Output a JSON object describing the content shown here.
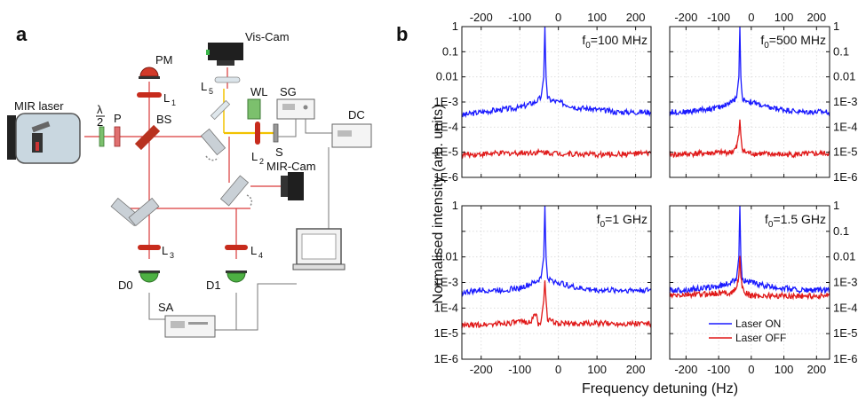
{
  "panel_a": {
    "label": "a",
    "components": {
      "mir_laser": "MIR laser",
      "half_wave_top": "λ",
      "half_wave_bottom": "2",
      "polarizer": "P",
      "beam_splitter": "BS",
      "power_meter": "PM",
      "lens1": "L",
      "lens1_sub": "1",
      "lens2": "L",
      "lens2_sub": "2",
      "lens3": "L",
      "lens3_sub": "3",
      "lens4": "L",
      "lens4_sub": "4",
      "lens5": "L",
      "lens5_sub": "5",
      "vis_cam": "Vis-Cam",
      "white_light": "WL",
      "signal_generator": "SG",
      "sample": "S",
      "dc_source": "DC",
      "mir_cam": "MIR-Cam",
      "detector0": "D0",
      "detector1": "D1",
      "spectrum_analyzer": "SA"
    }
  },
  "panel_b": {
    "label": "b",
    "ylabel": "Normalised intensity (arb. units)",
    "xlabel": "Frequency detuning (Hz)"
  },
  "colors": {
    "laser_on": "#1a1aff",
    "laser_off": "#e01818",
    "beam": "#d93a3a",
    "yellow_beam": "#f2c200"
  },
  "chart_data": [
    {
      "type": "line",
      "panel": "top-left",
      "annotation": "f0=100 MHz",
      "annotation_main": "f",
      "annotation_sub": "0",
      "annotation_rest": "=100 MHz",
      "xlim": [
        -250,
        240
      ],
      "ylim_log10": [
        -6,
        0
      ],
      "x_ticks_top": [
        "-200",
        "-100",
        "0",
        "100",
        "200"
      ],
      "x_tick_values": [
        -200,
        -100,
        0,
        100,
        200
      ],
      "y_ticks_left": [
        "1",
        "0.1",
        "0.01",
        "1E-3",
        "1E-4",
        "1E-5",
        "1E-6"
      ],
      "y_ticks_right": [],
      "series": [
        {
          "name": "Laser ON",
          "color": "#1a1aff",
          "baseline": 0.0004,
          "peak": 1.0,
          "x": [
            -250,
            -200,
            -150,
            -100,
            -60,
            -45,
            -38,
            -35,
            -32,
            -28,
            -20,
            0,
            50,
            100,
            150,
            200,
            240
          ],
          "y": [
            0.0003,
            0.0004,
            0.0005,
            0.0006,
            0.001,
            0.0015,
            0.01,
            1.0,
            0.01,
            0.0015,
            0.0012,
            0.001,
            0.0006,
            0.0005,
            0.0004,
            0.0004,
            0.0004
          ]
        },
        {
          "name": "Laser OFF",
          "color": "#e01818",
          "x": [
            -250,
            -150,
            -50,
            -35,
            0,
            100,
            240
          ],
          "y": [
            8e-06,
            9e-06,
            1e-05,
            1e-05,
            9e-06,
            8e-06,
            9e-06
          ]
        }
      ]
    },
    {
      "type": "line",
      "panel": "top-right",
      "annotation_main": "f",
      "annotation_sub": "0",
      "annotation_rest": "=500 MHz",
      "xlim": [
        -250,
        240
      ],
      "ylim_log10": [
        -6,
        0
      ],
      "x_ticks_top": [
        "-200",
        "-100",
        "0",
        "100",
        "200"
      ],
      "x_tick_values": [
        -200,
        -100,
        0,
        100,
        200
      ],
      "y_ticks_left": [],
      "y_ticks_right": [
        "1",
        "0.1",
        "0.01",
        "1E-3",
        "1E-4",
        "1E-5",
        "1E-6"
      ],
      "series": [
        {
          "name": "Laser ON",
          "color": "#1a1aff",
          "x": [
            -250,
            -200,
            -150,
            -100,
            -60,
            -45,
            -38,
            -35,
            -32,
            -28,
            -20,
            0,
            50,
            100,
            150,
            200,
            240
          ],
          "y": [
            0.0004,
            0.0004,
            0.0005,
            0.0006,
            0.001,
            0.0015,
            0.01,
            1.0,
            0.01,
            0.0015,
            0.0012,
            0.001,
            0.0006,
            0.0005,
            0.0004,
            0.0004,
            0.0004
          ]
        },
        {
          "name": "Laser OFF",
          "color": "#e01818",
          "x": [
            -250,
            -150,
            -60,
            -45,
            -38,
            -35,
            -32,
            -28,
            -20,
            0,
            100,
            240
          ],
          "y": [
            8e-06,
            9e-06,
            1e-05,
            1.5e-05,
            5e-05,
            0.0002,
            5e-05,
            1.5e-05,
            1e-05,
            9e-06,
            8e-06,
            9e-06
          ]
        }
      ]
    },
    {
      "type": "line",
      "panel": "bottom-left",
      "annotation_main": "f",
      "annotation_sub": "0",
      "annotation_rest": "=1 GHz",
      "xlim": [
        -250,
        240
      ],
      "ylim_log10": [
        -6,
        0
      ],
      "x_ticks_bottom": [
        "-200",
        "-100",
        "0",
        "100",
        "200"
      ],
      "x_tick_values": [
        -200,
        -100,
        0,
        100,
        200
      ],
      "y_ticks_left": [
        "1",
        "0.01",
        "1E-3",
        "1E-4",
        "1E-5",
        "1E-6"
      ],
      "y_ticks_right": [],
      "series": [
        {
          "name": "Laser ON",
          "color": "#1a1aff",
          "x": [
            -250,
            -200,
            -150,
            -100,
            -60,
            -45,
            -38,
            -35,
            -32,
            -28,
            -20,
            0,
            50,
            100,
            150,
            200,
            240
          ],
          "y": [
            0.0004,
            0.0005,
            0.0005,
            0.0006,
            0.001,
            0.0015,
            0.01,
            1.0,
            0.01,
            0.0015,
            0.0012,
            0.001,
            0.0006,
            0.0005,
            0.0005,
            0.0005,
            0.0005
          ]
        },
        {
          "name": "Laser OFF",
          "color": "#e01818",
          "x": [
            -250,
            -150,
            -70,
            -58,
            -52,
            -45,
            -38,
            -35,
            -32,
            -28,
            -20,
            0,
            100,
            240
          ],
          "y": [
            2e-05,
            2.5e-05,
            3e-05,
            7e-05,
            2e-05,
            3e-05,
            0.0002,
            0.0012,
            0.0002,
            4e-05,
            3e-05,
            2.5e-05,
            2.5e-05,
            2.5e-05
          ]
        }
      ]
    },
    {
      "type": "line",
      "panel": "bottom-right",
      "annotation_main": "f",
      "annotation_sub": "0",
      "annotation_rest": "=1.5 GHz",
      "xlim": [
        -250,
        240
      ],
      "ylim_log10": [
        -6,
        0
      ],
      "x_ticks_bottom": [
        "-200",
        "-100",
        "0",
        "100",
        "200"
      ],
      "x_tick_values": [
        -200,
        -100,
        0,
        100,
        200
      ],
      "y_ticks_left": [],
      "y_ticks_right": [
        "1",
        "0.1",
        "0.01",
        "1E-3",
        "1E-4",
        "1E-5",
        "1E-6"
      ],
      "legend": {
        "placement": "bottom-center",
        "entries": [
          "Laser ON",
          "Laser OFF"
        ]
      },
      "series": [
        {
          "name": "Laser ON",
          "color": "#1a1aff",
          "x": [
            -250,
            -200,
            -150,
            -100,
            -60,
            -45,
            -38,
            -35,
            -32,
            -28,
            -20,
            0,
            50,
            100,
            150,
            200,
            240
          ],
          "y": [
            0.0005,
            0.0005,
            0.0006,
            0.0007,
            0.001,
            0.0015,
            0.01,
            1.0,
            0.01,
            0.0015,
            0.0012,
            0.001,
            0.0007,
            0.0006,
            0.0005,
            0.0005,
            0.0005
          ]
        },
        {
          "name": "Laser OFF",
          "color": "#e01818",
          "x": [
            -250,
            -150,
            -60,
            -45,
            -38,
            -35,
            -32,
            -28,
            -20,
            0,
            100,
            240
          ],
          "y": [
            0.0003,
            0.00035,
            0.0004,
            0.0006,
            0.002,
            0.011,
            0.002,
            0.0006,
            0.0004,
            0.0003,
            0.0003,
            0.0003
          ]
        }
      ]
    }
  ]
}
